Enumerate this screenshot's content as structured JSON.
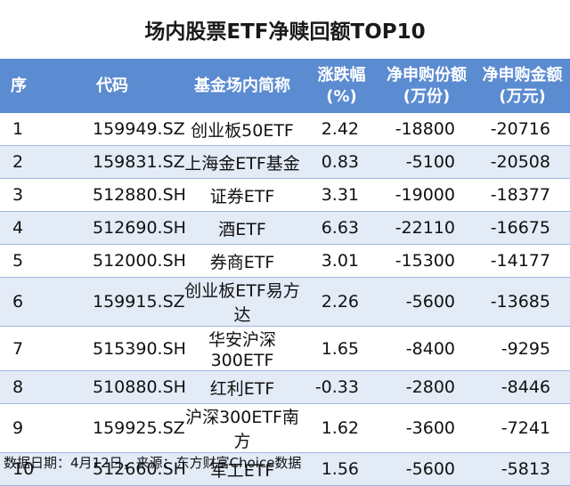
{
  "title": "场内股票ETF净赎回额TOP10",
  "columns": {
    "rank": "序",
    "code": "代码",
    "name": "基金场内简称",
    "change": "涨跌幅\n(%)",
    "net_shares": "净申购份额\n(万份)",
    "net_amount": "净申购金额\n(万元)"
  },
  "rows": [
    {
      "rank": "1",
      "code": "159949.SZ",
      "name": "创业板50ETF",
      "change": "2.42",
      "net_shares": "-18800",
      "net_amount": "-20716"
    },
    {
      "rank": "2",
      "code": "159831.SZ",
      "name": "上海金ETF基金",
      "change": "0.83",
      "net_shares": "-5100",
      "net_amount": "-20508"
    },
    {
      "rank": "3",
      "code": "512880.SH",
      "name": "证券ETF",
      "change": "3.31",
      "net_shares": "-19000",
      "net_amount": "-18377"
    },
    {
      "rank": "4",
      "code": "512690.SH",
      "name": "酒ETF",
      "change": "6.63",
      "net_shares": "-22110",
      "net_amount": "-16675"
    },
    {
      "rank": "5",
      "code": "512000.SH",
      "name": "券商ETF",
      "change": "3.01",
      "net_shares": "-15300",
      "net_amount": "-14177"
    },
    {
      "rank": "6",
      "code": "159915.SZ",
      "name": "创业板ETF易方达",
      "change": "2.26",
      "net_shares": "-5600",
      "net_amount": "-13685"
    },
    {
      "rank": "7",
      "code": "515390.SH",
      "name": "华安沪深300ETF",
      "change": "1.65",
      "net_shares": "-8400",
      "net_amount": "-9295"
    },
    {
      "rank": "8",
      "code": "510880.SH",
      "name": "红利ETF",
      "change": "-0.33",
      "net_shares": "-2800",
      "net_amount": "-8446"
    },
    {
      "rank": "9",
      "code": "159925.SZ",
      "name": "沪深300ETF南方",
      "change": "1.62",
      "net_shares": "-3600",
      "net_amount": "-7241"
    },
    {
      "rank": "10",
      "code": "512660.SH",
      "name": "军工ETF",
      "change": "1.56",
      "net_shares": "-5600",
      "net_amount": "-5813"
    }
  ],
  "footer": "数据日期：4月12日，来源：东方财富Choice数据",
  "colors": {
    "header_bg": "#5b8bd0",
    "stripe_bg": "#e3ebf7",
    "row_border": "#9fb8e0"
  }
}
